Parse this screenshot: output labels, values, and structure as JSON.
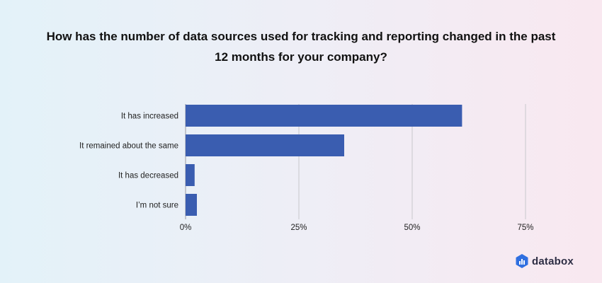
{
  "title_line1": "How has the number of data sources used for tracking and reporting changed in the past",
  "title_line2": "12 months for your company?",
  "brand": "databox",
  "colors": {
    "bar": "#3a5db0",
    "grid": "#c8c8cc",
    "text": "#222222"
  },
  "chart_data": {
    "type": "bar",
    "orientation": "horizontal",
    "categories": [
      "It has increased",
      "It remained about the same",
      "It has decreased",
      "I’m not sure"
    ],
    "values": [
      61,
      35,
      2,
      2.5
    ],
    "xticks": [
      "0%",
      "25%",
      "50%",
      "75%"
    ],
    "xtick_values": [
      0,
      25,
      50,
      75
    ],
    "xlim": [
      0,
      75
    ],
    "grid": true
  }
}
